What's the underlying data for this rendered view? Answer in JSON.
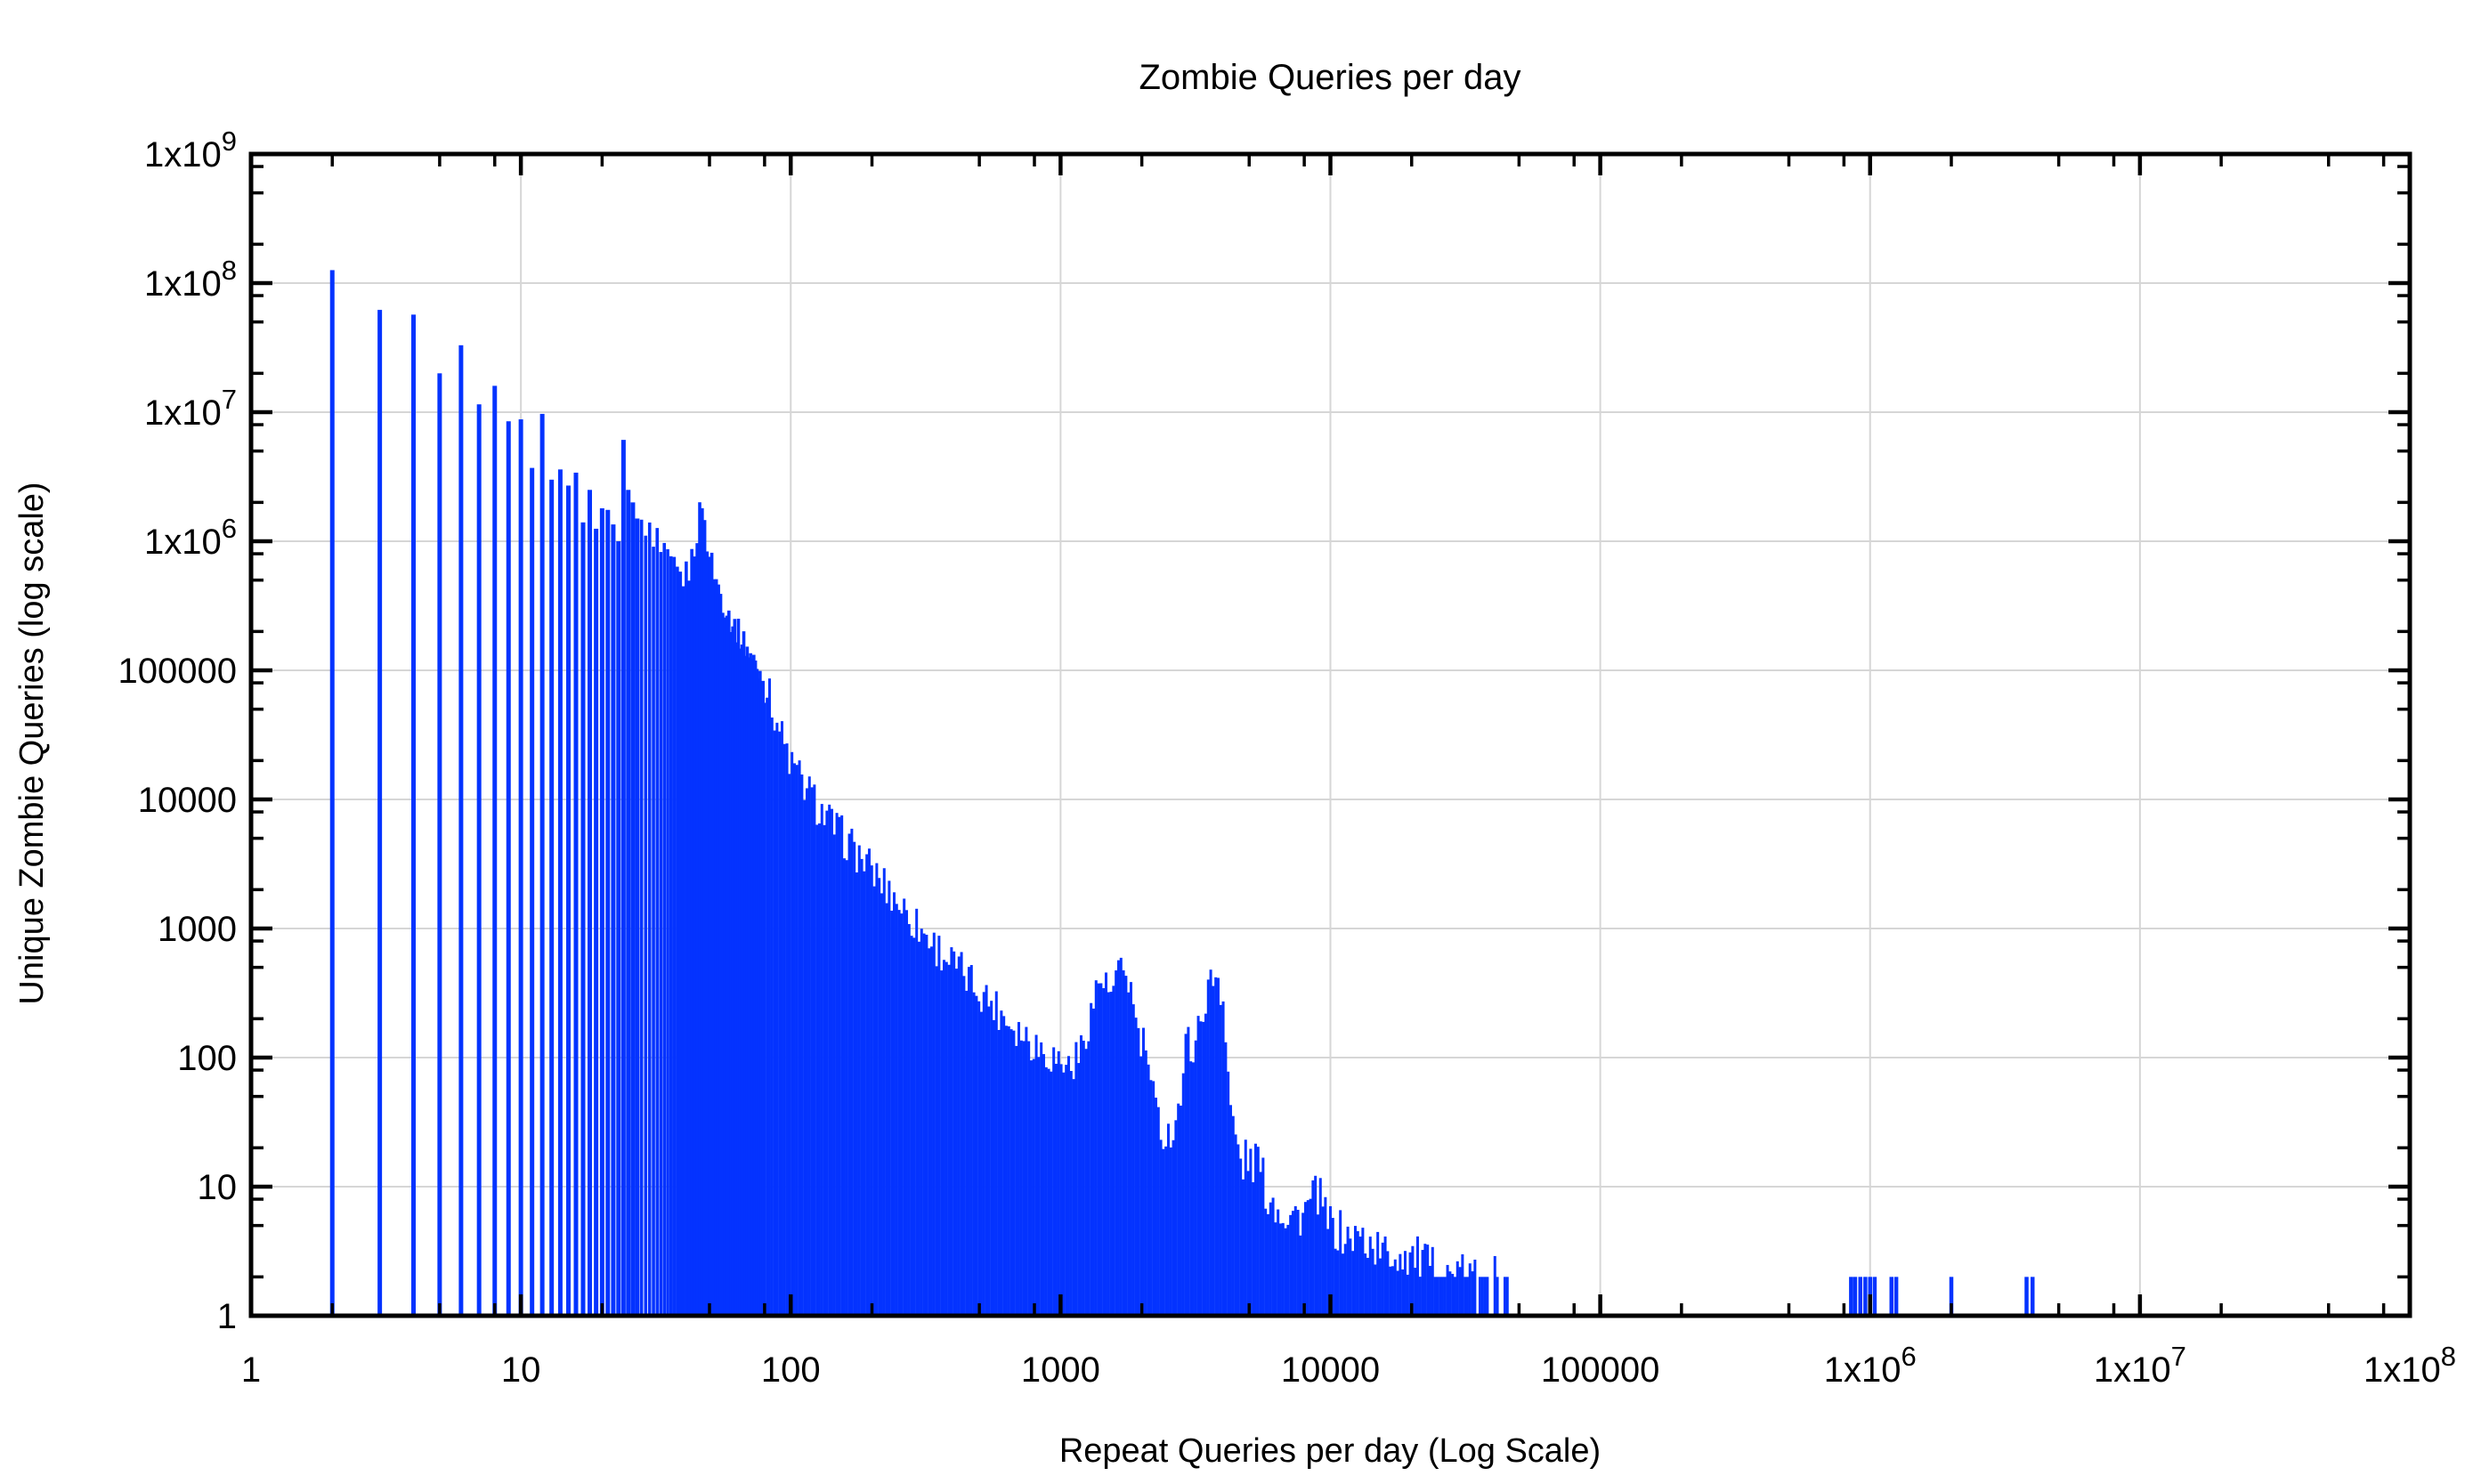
{
  "colors": {
    "bar": "#0433ff",
    "grid": "#d6d6d6",
    "axis": "#000000",
    "text": "#000000",
    "background": "#ffffff"
  },
  "chart_data": {
    "type": "bar",
    "title": "Zombie Queries per day",
    "xlabel": "Repeat Queries per day (Log Scale)",
    "ylabel": "Unique Zombie Queries (log scale)",
    "xscale": "log",
    "yscale": "log",
    "xlim": [
      1,
      100000000
    ],
    "ylim": [
      1,
      1000000000
    ],
    "grid": true,
    "x_ticks": [
      {
        "value": 1,
        "label": "1"
      },
      {
        "value": 10,
        "label": "10"
      },
      {
        "value": 100,
        "label": "100"
      },
      {
        "value": 1000,
        "label": "1000"
      },
      {
        "value": 10000,
        "label": "10000"
      },
      {
        "value": 100000,
        "label": "100000"
      },
      {
        "value": 1000000,
        "label": "1x10^6"
      },
      {
        "value": 10000000,
        "label": "1x10^7"
      },
      {
        "value": 100000000,
        "label": "1x10^8"
      }
    ],
    "y_ticks": [
      {
        "value": 1,
        "label": "1"
      },
      {
        "value": 10,
        "label": "10"
      },
      {
        "value": 100,
        "label": "100"
      },
      {
        "value": 1000,
        "label": "1000"
      },
      {
        "value": 10000,
        "label": "10000"
      },
      {
        "value": 100000,
        "label": "100000"
      },
      {
        "value": 1000000,
        "label": "1x10^6"
      },
      {
        "value": 10000000,
        "label": "1x10^7"
      },
      {
        "value": 100000000,
        "label": "1x10^8"
      },
      {
        "value": 1000000000,
        "label": "1x10^9"
      }
    ],
    "minor_tick_multiples": [
      2,
      5,
      8
    ],
    "integer_spike_bars": [
      [
        2,
        126000000
      ],
      [
        3,
        62000000
      ],
      [
        4,
        57000000
      ],
      [
        5,
        20000000
      ],
      [
        6,
        33000000
      ],
      [
        7,
        11500000
      ],
      [
        8,
        16000000
      ],
      [
        9,
        8500000
      ],
      [
        10,
        8800000
      ],
      [
        11,
        3700000
      ],
      [
        12,
        9700000
      ],
      [
        13,
        3000000
      ],
      [
        14,
        3600000
      ],
      [
        15,
        2700000
      ],
      [
        16,
        3400000
      ],
      [
        17,
        1400000
      ],
      [
        18,
        2500000
      ],
      [
        19,
        1250000
      ],
      [
        20,
        1800000
      ],
      [
        21,
        1750000
      ],
      [
        22,
        1350000
      ],
      [
        23,
        1000000
      ],
      [
        24,
        6100000
      ],
      [
        25,
        2500000
      ],
      [
        26,
        2000000
      ],
      [
        27,
        1500000
      ]
    ],
    "dense_region_range": [
      28,
      46000
    ],
    "dense_region_envelope": [
      [
        28,
        1250000
      ],
      [
        29,
        1350000
      ],
      [
        30,
        1200000
      ],
      [
        31,
        850000
      ],
      [
        32,
        1100000
      ],
      [
        33,
        800000
      ],
      [
        34,
        760000
      ],
      [
        36,
        650000
      ],
      [
        38,
        560000
      ],
      [
        40,
        520000
      ],
      [
        42,
        600000
      ],
      [
        44,
        900000
      ],
      [
        46,
        1600000
      ],
      [
        47,
        2100000
      ],
      [
        48,
        1300000
      ],
      [
        50,
        800000
      ],
      [
        53,
        500000
      ],
      [
        56,
        350000
      ],
      [
        60,
        250000
      ],
      [
        65,
        185000
      ],
      [
        70,
        140000
      ],
      [
        75,
        105000
      ],
      [
        80,
        80000
      ],
      [
        85,
        55000
      ],
      [
        90,
        38000
      ],
      [
        95,
        26000
      ],
      [
        100,
        19000
      ],
      [
        115,
        12000
      ],
      [
        130,
        8000
      ],
      [
        150,
        5600
      ],
      [
        170,
        4200
      ],
      [
        200,
        2800
      ],
      [
        240,
        1800
      ],
      [
        280,
        1200
      ],
      [
        340,
        750
      ],
      [
        420,
        480
      ],
      [
        520,
        310
      ],
      [
        650,
        190
      ],
      [
        800,
        130
      ],
      [
        950,
        100
      ],
      [
        1080,
        85
      ],
      [
        1180,
        105
      ],
      [
        1250,
        170
      ],
      [
        1320,
        260
      ],
      [
        1380,
        380
      ],
      [
        1430,
        420
      ],
      [
        1480,
        330
      ],
      [
        1540,
        300
      ],
      [
        1600,
        380
      ],
      [
        1680,
        450
      ],
      [
        1760,
        470
      ],
      [
        1820,
        330
      ],
      [
        1880,
        230
      ],
      [
        1930,
        150
      ],
      [
        2000,
        120
      ],
      [
        2080,
        130
      ],
      [
        2150,
        60
      ],
      [
        2250,
        40
      ],
      [
        2350,
        28
      ],
      [
        2500,
        25
      ],
      [
        2650,
        30
      ],
      [
        2750,
        45
      ],
      [
        2850,
        60
      ],
      [
        2950,
        170
      ],
      [
        3050,
        120
      ],
      [
        3200,
        140
      ],
      [
        3350,
        230
      ],
      [
        3500,
        320
      ],
      [
        3650,
        400
      ],
      [
        3800,
        440
      ],
      [
        3900,
        380
      ],
      [
        4000,
        300
      ],
      [
        4100,
        140
      ],
      [
        4200,
        60
      ],
      [
        4350,
        30
      ],
      [
        4500,
        22
      ],
      [
        4700,
        14
      ],
      [
        4900,
        17
      ],
      [
        5100,
        15
      ],
      [
        5400,
        17
      ],
      [
        5700,
        10
      ],
      [
        6000,
        8
      ],
      [
        6500,
        7
      ],
      [
        7000,
        6
      ],
      [
        7700,
        6
      ],
      [
        8300,
        7
      ],
      [
        9000,
        9
      ],
      [
        9500,
        6
      ],
      [
        10000,
        5
      ],
      [
        11500,
        4
      ],
      [
        13000,
        4
      ],
      [
        16000,
        3
      ],
      [
        20000,
        3
      ],
      [
        26000,
        2
      ],
      [
        35000,
        2
      ],
      [
        46000,
        2
      ]
    ],
    "isolated_bars": [
      [
        850000,
        2
      ],
      [
        880000,
        2
      ],
      [
        920000,
        2
      ],
      [
        960000,
        2
      ],
      [
        1000000,
        2
      ],
      [
        1040000,
        2
      ],
      [
        1200000,
        2
      ],
      [
        1250000,
        2
      ],
      [
        2000000,
        2
      ],
      [
        3800000,
        2
      ],
      [
        4000000,
        2
      ]
    ]
  }
}
